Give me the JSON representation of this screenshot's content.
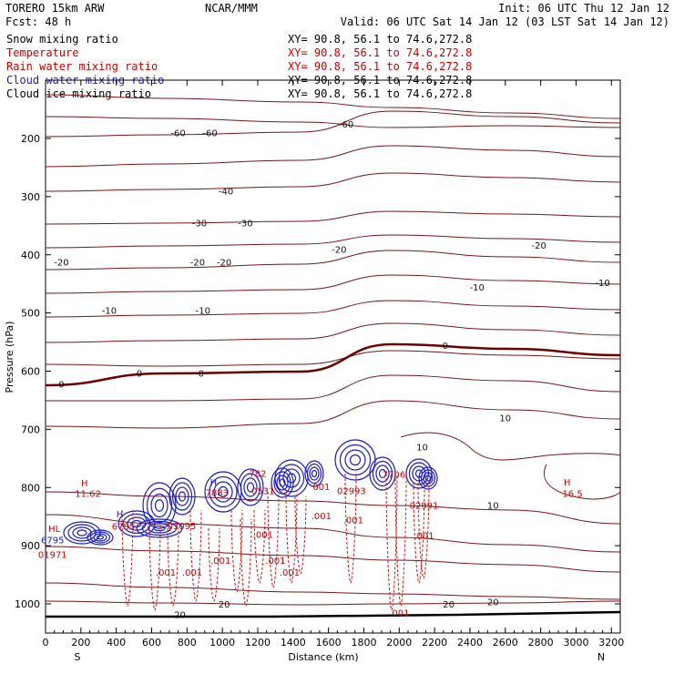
{
  "header": {
    "model": "TORERO  15km ARW",
    "org": "NCAR/MMM",
    "init": "Init: 06 UTC Thu 12 Jan 12",
    "fcst": "Fcst:   48 h",
    "valid": "Valid: 06 UTC Sat 14 Jan 12 (03 LST Sat 14 Jan 12)"
  },
  "legend": [
    {
      "label": "Snow mixing ratio",
      "xy": "XY=  90.8, 56.1 to  74.6,272.8",
      "color": "#000000"
    },
    {
      "label": "Temperature",
      "xy": "XY=  90.8, 56.1 to  74.6,272.8",
      "color": "#cc0000"
    },
    {
      "label": "Rain water mixing ratio",
      "xy": "XY=  90.8, 56.1 to  74.6,272.8",
      "color": "#cc0000"
    },
    {
      "label": "Cloud water mixing ratio",
      "xy": "XY=  90.8, 56.1 to  74.6,272.8",
      "color": "#1a1acc"
    },
    {
      "label": "Cloud ice mixing ratio",
      "xy": "XY=  90.8, 56.1 to  74.6,272.8",
      "color": "#000000"
    }
  ],
  "chart_data": {
    "type": "cross-section contour",
    "xlabel": "Distance (km)",
    "ylabel": "Pressure (hPa)",
    "xlim": [
      0,
      3250
    ],
    "ylim": [
      1050,
      100
    ],
    "x_ticks": [
      "0",
      "200",
      "400",
      "600",
      "800",
      "1000",
      "1200",
      "1400",
      "1600",
      "1800",
      "2000",
      "2200",
      "2400",
      "2600",
      "2800",
      "3000",
      "3200"
    ],
    "y_ticks": [
      "200",
      "300",
      "400",
      "500",
      "600",
      "700",
      "800",
      "900",
      "1000"
    ],
    "y_tick_values": [
      200,
      300,
      400,
      500,
      600,
      700,
      800,
      900,
      1000
    ],
    "x_end_labels": {
      "left": "S",
      "right": "N"
    },
    "temperature_labels": [
      {
        "text": "-60",
        "x": 750,
        "p": 190
      },
      {
        "text": "-60",
        "x": 930,
        "p": 190
      },
      {
        "text": "-60",
        "x": 1700,
        "p": 175
      },
      {
        "text": "-40",
        "x": 1020,
        "p": 290
      },
      {
        "text": "-30",
        "x": 870,
        "p": 345
      },
      {
        "text": "-30",
        "x": 1130,
        "p": 345
      },
      {
        "text": "-20",
        "x": 90,
        "p": 412
      },
      {
        "text": "-20",
        "x": 860,
        "p": 412
      },
      {
        "text": "-20",
        "x": 1010,
        "p": 412
      },
      {
        "text": "-20",
        "x": 1660,
        "p": 390
      },
      {
        "text": "-20",
        "x": 2790,
        "p": 383
      },
      {
        "text": "-10",
        "x": 360,
        "p": 495
      },
      {
        "text": "-10",
        "x": 890,
        "p": 495
      },
      {
        "text": "-10",
        "x": 2440,
        "p": 455
      },
      {
        "text": "-10",
        "x": 3150,
        "p": 447
      },
      {
        "text": "0",
        "x": 90,
        "p": 622
      },
      {
        "text": "0",
        "x": 530,
        "p": 603
      },
      {
        "text": "0",
        "x": 880,
        "p": 603
      },
      {
        "text": "0",
        "x": 2260,
        "p": 555
      },
      {
        "text": "10",
        "x": 2600,
        "p": 680
      },
      {
        "text": "10",
        "x": 2130,
        "p": 730
      },
      {
        "text": "10",
        "x": 2530,
        "p": 830
      },
      {
        "text": "20",
        "x": 1010,
        "p": 1000
      },
      {
        "text": "20",
        "x": 2280,
        "p": 1000
      },
      {
        "text": "20",
        "x": 2530,
        "p": 996
      },
      {
        "text": "20",
        "x": 760,
        "p": 1018
      }
    ],
    "extrema_labels": [
      {
        "text": "H",
        "x": 220,
        "p": 792,
        "color": "#cc0000"
      },
      {
        "text": "11.62",
        "x": 240,
        "p": 810,
        "color": "#cc0000"
      },
      {
        "text": "H",
        "x": 2950,
        "p": 790,
        "color": "#cc0000"
      },
      {
        "text": "16.5",
        "x": 2980,
        "p": 810,
        "color": "#cc0000"
      },
      {
        "text": "HL",
        "x": 50,
        "p": 870,
        "color": "#cc0000"
      },
      {
        "text": "6795",
        "x": 40,
        "p": 890,
        "color": "#1a1acc"
      },
      {
        "text": "01971",
        "x": 40,
        "p": 915,
        "color": "#cc0000"
      },
      {
        "text": "H",
        "x": 420,
        "p": 845,
        "color": "#1a1acc"
      },
      {
        "text": "6785",
        "x": 440,
        "p": 866,
        "color": "#cc0000"
      },
      {
        "text": "H",
        "x": 950,
        "p": 790,
        "color": "#1a1acc"
      },
      {
        "text": "7883",
        "x": 970,
        "p": 808,
        "color": "#cc0000"
      },
      {
        "text": "782",
        "x": 1200,
        "p": 775,
        "color": "#cc0000"
      },
      {
        "text": "0531",
        "x": 1230,
        "p": 805,
        "color": "#cc0000"
      },
      {
        "text": "03095",
        "x": 770,
        "p": 865,
        "color": "#cc0000"
      },
      {
        "text": "001",
        "x": 1560,
        "p": 798,
        "color": "#cc0000"
      },
      {
        "text": "02993",
        "x": 1730,
        "p": 805,
        "color": "#cc0000"
      },
      {
        "text": "7706",
        "x": 1970,
        "p": 777,
        "color": "#cc0000"
      },
      {
        "text": "02991",
        "x": 2140,
        "p": 830,
        "color": "#cc0000"
      },
      {
        "text": ".001",
        "x": 1560,
        "p": 848,
        "color": "#cc0000"
      },
      {
        "text": ".001",
        "x": 1740,
        "p": 855,
        "color": "#cc0000"
      },
      {
        "text": ".001",
        "x": 1230,
        "p": 880,
        "color": "#cc0000"
      },
      {
        "text": ".001",
        "x": 2140,
        "p": 882,
        "color": "#cc0000"
      },
      {
        "text": ".001",
        "x": 990,
        "p": 925,
        "color": "#cc0000"
      },
      {
        "text": ".001",
        "x": 1300,
        "p": 925,
        "color": "#cc0000"
      },
      {
        "text": ".001",
        "x": 680,
        "p": 945,
        "color": "#cc0000"
      },
      {
        "text": ".001",
        "x": 830,
        "p": 945,
        "color": "#cc0000"
      },
      {
        "text": ".001",
        "x": 1380,
        "p": 945,
        "color": "#cc0000"
      },
      {
        "text": ".001",
        "x": 2000,
        "p": 1015,
        "color": "#cc0000"
      }
    ]
  },
  "style": {
    "temperature_color": "#7a1515",
    "zero_line_color": "#6b0000",
    "rain_color": "#dd1111",
    "cloud_water_color": "#1a1acc"
  }
}
